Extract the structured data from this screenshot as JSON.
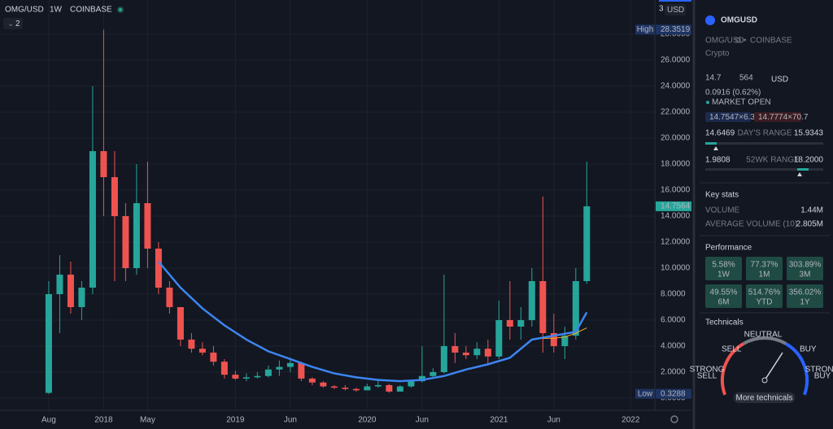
{
  "chart_data": {
    "type": "candlestick",
    "header": {
      "symbol": "OMG/USD",
      "interval": "1W",
      "exchange": "COINBASE",
      "layout_count": "2",
      "currency": "USD",
      "scale_number": "3"
    },
    "x": [
      0,
      1,
      2,
      3,
      4,
      5,
      6,
      7,
      8,
      9,
      10,
      11,
      12,
      13,
      14,
      15,
      16,
      17,
      18,
      19,
      20,
      21,
      22,
      23,
      24,
      25,
      26,
      27,
      28,
      29,
      30,
      31,
      32,
      33,
      34,
      35,
      36,
      37,
      38,
      39,
      40,
      41,
      42,
      43,
      44,
      45,
      46,
      47,
      48,
      49
    ],
    "open": [
      0.4,
      8,
      9.5,
      7,
      8.5,
      19,
      17,
      14,
      10,
      15,
      11.5,
      8.5,
      7,
      4.5,
      3.8,
      3.5,
      2.8,
      1.8,
      1.5,
      1.6,
      1.7,
      2.2,
      2.4,
      2.7,
      1.5,
      1.2,
      0.9,
      0.8,
      0.7,
      0.6,
      0.9,
      1,
      0.5,
      0.9,
      1.3,
      1.7,
      2,
      4,
      3.5,
      3.3,
      3.8,
      3.2,
      6,
      5.5,
      6,
      9,
      5,
      4,
      4.8,
      9
    ],
    "high": [
      9,
      11,
      10.5,
      9,
      24,
      28.3519,
      19,
      15,
      18,
      18.2,
      12,
      9,
      7,
      5,
      4.3,
      4,
      3,
      2.1,
      1.9,
      2,
      2.5,
      2.9,
      3.1,
      2.8,
      1.6,
      1.3,
      1,
      1,
      0.8,
      1.1,
      1.5,
      1.1,
      1,
      1.4,
      4,
      2.3,
      9.5,
      5,
      4,
      4.3,
      4.5,
      7.5,
      9,
      7,
      10,
      15.5,
      6.5,
      5.5,
      10,
      18.2
    ],
    "low": [
      0.3288,
      5,
      6.5,
      6,
      8,
      14,
      9,
      9,
      9.5,
      10,
      8,
      6.5,
      4,
      3.5,
      3.3,
      2.5,
      1.5,
      1.4,
      1.3,
      1.5,
      1.6,
      1.7,
      2,
      1.3,
      1,
      0.8,
      0.7,
      0.6,
      0.5,
      0.6,
      0.8,
      0.4,
      0.5,
      0.8,
      1.2,
      1.5,
      1.9,
      2.7,
      3,
      3,
      2.5,
      3,
      4.5,
      4.5,
      5.5,
      3.5,
      3.5,
      3,
      4.5,
      8.8
    ],
    "close": [
      8,
      9.5,
      7,
      8.5,
      19,
      17,
      14,
      10,
      15,
      11.5,
      8.5,
      7,
      4.5,
      3.8,
      3.5,
      2.8,
      1.8,
      1.5,
      1.6,
      1.7,
      2.2,
      2.4,
      2.7,
      1.5,
      1.2,
      0.9,
      0.8,
      0.7,
      0.6,
      0.9,
      1,
      0.5,
      0.9,
      1.3,
      1.7,
      2,
      4,
      3.5,
      3.3,
      3.8,
      3.2,
      6,
      5.5,
      6,
      9,
      5,
      4,
      4.8,
      9,
      14.7564
    ],
    "up_color": "#26a69a",
    "down_color": "#ef5350",
    "lines": [
      {
        "color": "#3d85f0",
        "x": [
          10,
          12,
          14,
          16,
          18,
          20,
          22,
          24,
          26,
          28,
          30,
          32,
          34,
          36,
          38,
          40,
          42,
          44,
          46,
          48,
          49
        ],
        "values": [
          10.5,
          8.5,
          6.9,
          5.6,
          4.5,
          3.6,
          3,
          2.4,
          1.9,
          1.6,
          1.4,
          1.3,
          1.4,
          1.7,
          2.2,
          2.6,
          3.1,
          4.5,
          4.8,
          5.1,
          6.6
        ]
      },
      {
        "color": "#f5a623",
        "x": [
          45,
          46,
          47,
          48,
          49
        ],
        "values": [
          4.6,
          4.6,
          4.7,
          5,
          5.4
        ]
      }
    ],
    "xlim": [
      -4.44,
      55.2
    ],
    "ylim": [
      -0.94,
      30.63
    ],
    "xticks": [
      {
        "value": 0,
        "label": "Aug"
      },
      {
        "value": 5,
        "label": "2018"
      },
      {
        "value": 9,
        "label": "May"
      },
      {
        "value": 17,
        "label": "2019"
      },
      {
        "value": 22,
        "label": "Jun"
      },
      {
        "value": 29,
        "label": "2020"
      },
      {
        "value": 34,
        "label": "Jun"
      },
      {
        "value": 41,
        "label": "2021"
      },
      {
        "value": 46,
        "label": "Jun"
      },
      {
        "value": 53,
        "label": "2022"
      }
    ],
    "yticks": [
      {
        "value": 0,
        "label": "0.0000"
      },
      {
        "value": 2,
        "label": "2.0000"
      },
      {
        "value": 4,
        "label": "4.0000"
      },
      {
        "value": 6,
        "label": "6.0000"
      },
      {
        "value": 8,
        "label": "8.0000"
      },
      {
        "value": 10,
        "label": "10.0000"
      },
      {
        "value": 12,
        "label": "12.0000"
      },
      {
        "value": 14,
        "label": "14.0000"
      },
      {
        "value": 16,
        "label": "16.0000"
      },
      {
        "value": 18,
        "label": "18.0000"
      },
      {
        "value": 20,
        "label": "20.0000"
      },
      {
        "value": 22,
        "label": "22.0000"
      },
      {
        "value": 24,
        "label": "24.0000"
      },
      {
        "value": 26,
        "label": "26.0000"
      },
      {
        "value": 28,
        "label": "28.0000"
      }
    ],
    "grid": true,
    "high_marker": {
      "label": "High",
      "value": 28.3519
    },
    "low_marker": {
      "label": "Low",
      "value": 0.3288
    },
    "last_price": 14.7564,
    "last_price_color": "#26a69a"
  },
  "sidebar": {
    "symbol": "OMGUSD",
    "pair": "OMG/USD",
    "exchange": "COINBASE",
    "category": "Crypto",
    "price_main": "14.7",
    "price_tail": "564",
    "currency": "USD",
    "change": "0.0916 (0.62%)",
    "market_status": "MARKET OPEN",
    "bid": "14.7547×6.3",
    "ask": "14.7774×70.7",
    "day_range": {
      "low": "14.6469",
      "label": "DAY'S RANGE",
      "high": "15.9343"
    },
    "week52_range": {
      "low": "1.9808",
      "label": "52WK RANGE",
      "high": "18.2000"
    },
    "key_stats": {
      "title": "Key stats",
      "rows": [
        [
          "VOLUME",
          "1.44M"
        ],
        [
          "AVERAGE VOLUME (10)",
          "2.805M"
        ]
      ]
    },
    "performance": {
      "title": "Performance",
      "cells": [
        [
          "5.58%",
          "1W"
        ],
        [
          "77.37%",
          "1M"
        ],
        [
          "303.89%",
          "3M"
        ],
        [
          "49.55%",
          "6M"
        ],
        [
          "514.76%",
          "YTD"
        ],
        [
          "356.02%",
          "1Y"
        ]
      ]
    },
    "technicals": {
      "title": "Technicals",
      "sell": "SELL",
      "neutral": "NEUTRAL",
      "buy": "BUY",
      "strong_sell": [
        "STRONG",
        "SELL"
      ],
      "strong_buy": [
        "STRONG",
        "BUY"
      ],
      "button": "More technicals"
    }
  }
}
